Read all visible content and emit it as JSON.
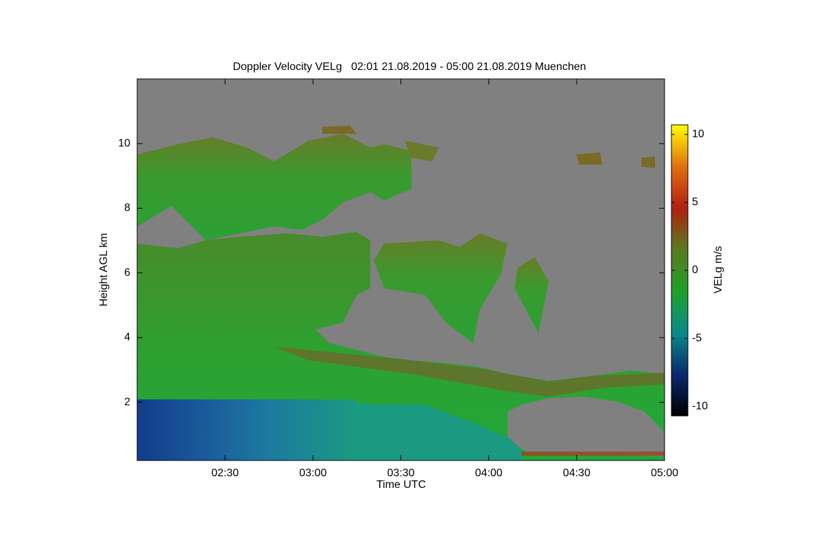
{
  "chart_data": {
    "type": "heatmap",
    "title": "Doppler Velocity VELg   02:01 21.08.2019 - 05:00 21.08.2019 Muenchen",
    "x_label": "Time UTC",
    "y_label": "Height AGL km",
    "colorbar_label": "VELg m/s",
    "xlim": [
      2.0,
      5.0
    ],
    "xticks": [
      {
        "value": 2.5,
        "label": "02:30"
      },
      {
        "value": 3.0,
        "label": "03:00"
      },
      {
        "value": 3.5,
        "label": "03:30"
      },
      {
        "value": 4.0,
        "label": "04:00"
      },
      {
        "value": 4.5,
        "label": "04:30"
      },
      {
        "value": 5.0,
        "label": "05:00"
      }
    ],
    "ylim": [
      0.2,
      12.0
    ],
    "yticks": [
      2,
      4,
      6,
      8,
      10
    ],
    "clim": [
      -10.7,
      10.7
    ],
    "cticks": [
      -10,
      -5,
      0,
      5,
      10
    ],
    "colormap": [
      "#000000",
      "#0a2a6e",
      "#0a8a8a",
      "#1fa02a",
      "#5a7a20",
      "#b02010",
      "#e07010",
      "#ffff00"
    ]
  }
}
